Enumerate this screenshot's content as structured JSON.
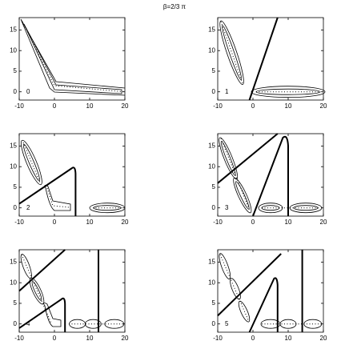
{
  "title": "β=2/3 π",
  "chart_data": [
    {
      "type": "plot",
      "label": "0",
      "xlim": [
        -10,
        20
      ],
      "ylim": [
        -2,
        18
      ],
      "xticks": [
        -10,
        0,
        10,
        20
      ],
      "yticks": [
        0,
        5,
        10,
        15
      ]
    },
    {
      "type": "plot",
      "label": "1",
      "xlim": [
        -10,
        20
      ],
      "ylim": [
        -2,
        18
      ],
      "xticks": [
        -10,
        0,
        10,
        20
      ],
      "yticks": [
        0,
        5,
        10,
        15
      ]
    },
    {
      "type": "plot",
      "label": "2",
      "xlim": [
        -10,
        20
      ],
      "ylim": [
        -2,
        18
      ],
      "xticks": [
        -10,
        0,
        10,
        20
      ],
      "yticks": [
        0,
        5,
        10,
        15
      ]
    },
    {
      "type": "plot",
      "label": "3",
      "xlim": [
        -10,
        20
      ],
      "ylim": [
        -2,
        18
      ],
      "xticks": [
        -10,
        0,
        10,
        20
      ],
      "yticks": [
        0,
        5,
        10,
        15
      ]
    },
    {
      "type": "plot",
      "label": "4",
      "xlim": [
        -10,
        20
      ],
      "ylim": [
        -2,
        18
      ],
      "xticks": [
        -10,
        0,
        10,
        20
      ],
      "yticks": [
        0,
        5,
        10,
        15
      ]
    },
    {
      "type": "plot",
      "label": "5",
      "xlim": [
        -10,
        20
      ],
      "ylim": [
        -2,
        18
      ],
      "xticks": [
        -10,
        0,
        10,
        20
      ],
      "yticks": [
        0,
        5,
        10,
        15
      ]
    }
  ]
}
